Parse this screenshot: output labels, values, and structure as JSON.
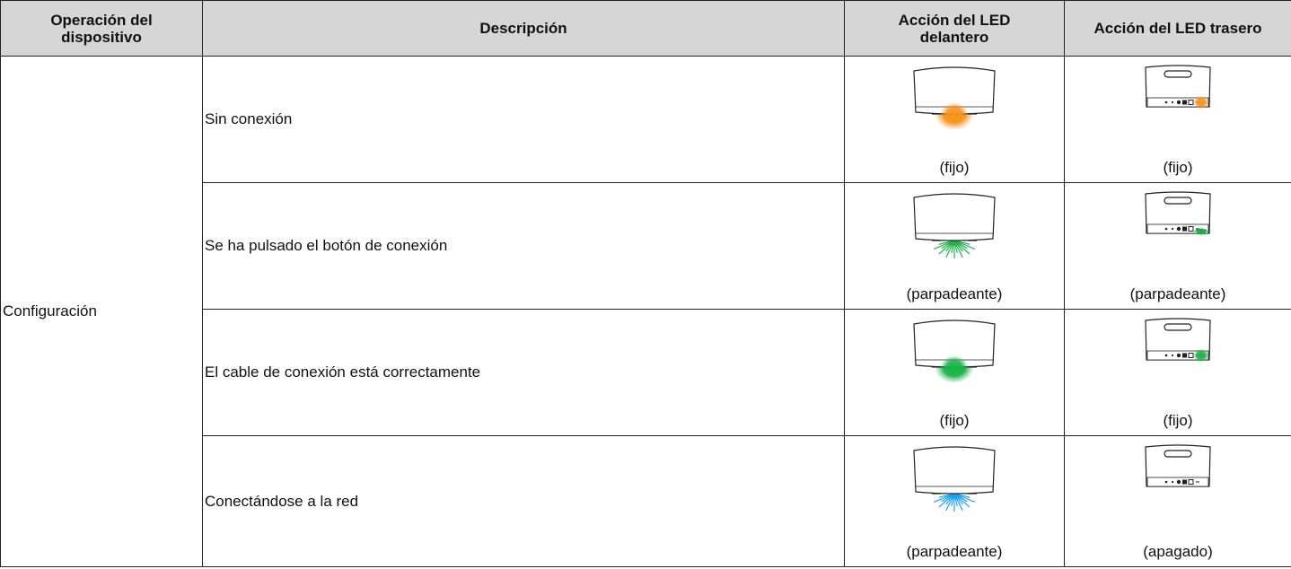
{
  "table": {
    "header": [
      "Operación del dispositivo",
      "Descripción",
      "Acción del LED delantero",
      "Acción del LED trasero"
    ],
    "group": "Configuración",
    "rows": [
      {
        "description": "Sin conexión",
        "front": {
          "label": "(fijo)",
          "color": "#f7931e",
          "blinking": false
        },
        "rear": {
          "label": "(fijo)",
          "color": "#f7931e",
          "blinking": false
        }
      },
      {
        "description": "Se ha pulsado el botón de conexión",
        "front": {
          "label": "(parpadeante)",
          "color": "#1db34a",
          "blinking": true
        },
        "rear": {
          "label": "(parpadeante)",
          "color": "#1db34a",
          "blinking": true
        }
      },
      {
        "description": "El cable de conexión está correctamente",
        "front": {
          "label": "(fijo)",
          "color": "#1db34a",
          "blinking": false
        },
        "rear": {
          "label": "(fijo)",
          "color": "#1db34a",
          "blinking": false
        }
      },
      {
        "description": "Conectándose a la red",
        "front": {
          "label": "(parpadeante)",
          "color": "#1aa3f0",
          "blinking": true
        },
        "rear": {
          "label": "(apagado)",
          "color": null,
          "blinking": false
        }
      }
    ]
  }
}
